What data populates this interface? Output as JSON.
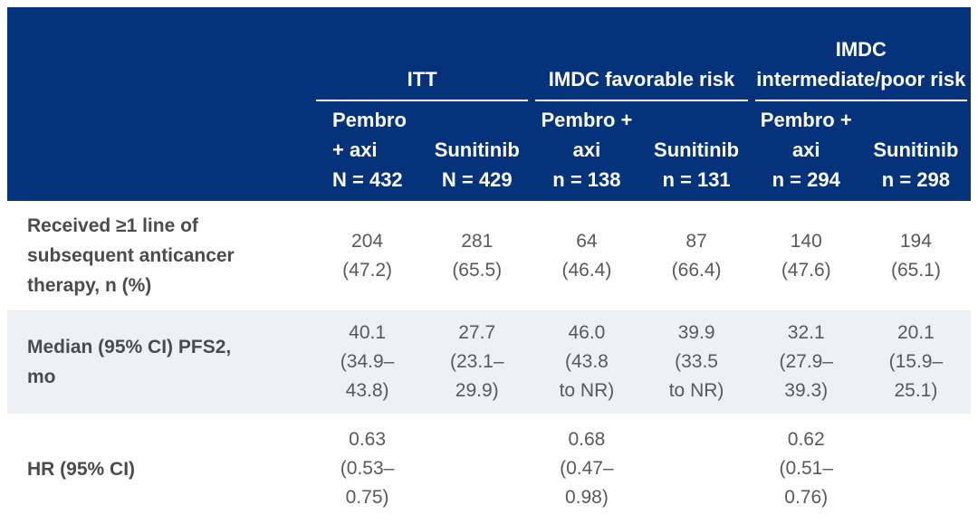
{
  "chart_data": {
    "type": "table",
    "header": {
      "groups": [
        {
          "label": "ITT"
        },
        {
          "label": "IMDC favorable risk"
        },
        {
          "label": "IMDC intermediate/poor risk"
        }
      ],
      "columns": [
        {
          "lines": [
            "Pembro",
            "+ axi",
            "N = 432"
          ]
        },
        {
          "lines": [
            "Sunitinib",
            "N = 429"
          ]
        },
        {
          "lines": [
            "Pembro +",
            "axi",
            "n = 138"
          ]
        },
        {
          "lines": [
            "Sunitinib",
            "n = 131"
          ]
        },
        {
          "lines": [
            "Pembro +",
            "axi",
            "n = 294"
          ]
        },
        {
          "lines": [
            "Sunitinib",
            "n = 298"
          ]
        }
      ]
    },
    "rows": [
      {
        "label": "Received ≥1 line of subsequent anticancer therapy, n (%)",
        "label_lines": [
          "Received ≥1 line of",
          "subsequent anticancer",
          "therapy, n (%)"
        ],
        "cells": [
          [
            "204",
            "(47.2)"
          ],
          [
            "281",
            "(65.5)"
          ],
          [
            "64",
            "(46.4)"
          ],
          [
            "87",
            "(66.4)"
          ],
          [
            "140",
            "(47.6)"
          ],
          [
            "194",
            "(65.1)"
          ]
        ]
      },
      {
        "label": "Median (95% CI) PFS2, mo",
        "label_lines": [
          "Median (95% CI) PFS2,",
          "mo"
        ],
        "cells": [
          [
            "40.1",
            "(34.9–",
            "43.8)"
          ],
          [
            "27.7",
            "(23.1–",
            "29.9)"
          ],
          [
            "46.0",
            "(43.8",
            "to NR)"
          ],
          [
            "39.9",
            "(33.5",
            "to NR)"
          ],
          [
            "32.1",
            "(27.9–",
            "39.3)"
          ],
          [
            "20.1",
            "(15.9–",
            "25.1)"
          ]
        ]
      },
      {
        "label": "HR (95% CI)",
        "label_lines": [
          "HR (95% CI)"
        ],
        "cells": [
          [
            "0.63",
            "(0.53–",
            "0.75)"
          ],
          [],
          [
            "0.68",
            "(0.47–",
            "0.98)"
          ],
          [],
          [
            "0.62",
            "(0.51–",
            "0.76)"
          ],
          []
        ]
      }
    ]
  },
  "colors": {
    "header_bg": "#04337b",
    "header_text": "#ffffff",
    "row_shade": "#edf0f5",
    "label_text": "#4b4b4d",
    "value_text": "#58595b"
  }
}
